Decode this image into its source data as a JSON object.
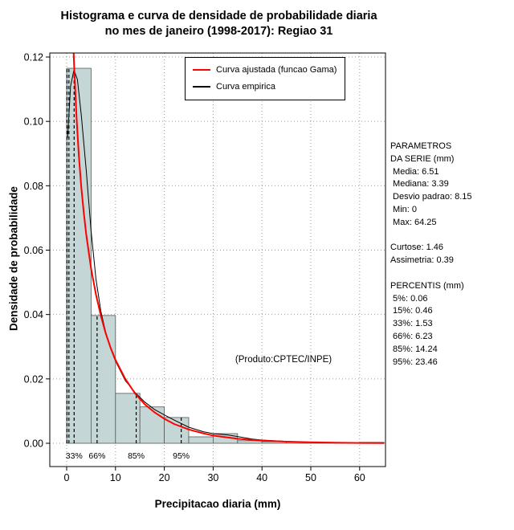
{
  "annotation": "(Produto:CPTEC/INPE)",
  "stats_panel": {
    "lines": [
      "PARAMETROS",
      "DA SERIE (mm)",
      " Media: 6.51",
      " Mediana: 3.39",
      " Desvio padrao: 8.15",
      " Min: 0",
      " Max: 64.25",
      "",
      "Curtose: 1.46",
      "Assimetria: 0.39",
      "",
      "PERCENTIS (mm)",
      " 5%: 0.06",
      " 15%: 0.46",
      " 33%: 1.53",
      " 66%: 6.23",
      " 85%: 14.24",
      " 95%: 23.46"
    ]
  },
  "chart_data": {
    "type": "histogram+density",
    "title": "Histograma e curva de densidade de probabilidade diaria no mes de janeiro (1998-2017): Regiao 31",
    "title_line1": "Histograma e curva de densidade de probabilidade diaria",
    "title_line2": "no mes de janeiro (1998-2017): Regiao 31",
    "xlabel": "Precipitacao diaria (mm)",
    "ylabel": "Densidade de probabilidade",
    "xlim": [
      0,
      65
    ],
    "ylim": [
      0,
      0.12
    ],
    "x_ticks": [
      0,
      10,
      20,
      30,
      40,
      50,
      60
    ],
    "y_ticks": [
      0,
      0.02,
      0.04,
      0.06,
      0.08,
      0.1,
      0.12
    ],
    "grid": true,
    "legend_position": "top-center-inside",
    "histogram": {
      "bin_start": 0,
      "bin_width": 5,
      "densities": [
        0.1165,
        0.0397,
        0.0155,
        0.0113,
        0.008,
        0.002,
        0.003,
        0.0008,
        0.0005,
        0.0004,
        0.0002,
        0.0001,
        0.0003
      ]
    },
    "gamma_curve": {
      "name": "Curva ajustada (funcao Gama)",
      "color": "#ff0000",
      "points": [
        [
          0.45,
          0.2031
        ],
        [
          0.6,
          0.1803
        ],
        [
          0.8,
          0.1594
        ],
        [
          1,
          0.1442
        ],
        [
          1.2,
          0.1323
        ],
        [
          1.5,
          0.1185
        ],
        [
          2,
          0.1017
        ],
        [
          2.5,
          0.0893
        ],
        [
          3,
          0.0796
        ],
        [
          3.5,
          0.0717
        ],
        [
          4,
          0.065
        ],
        [
          5,
          0.0543
        ],
        [
          6,
          0.0462
        ],
        [
          7,
          0.0396
        ],
        [
          8,
          0.0342
        ],
        [
          9,
          0.0297
        ],
        [
          10,
          0.0259
        ],
        [
          12,
          0.02
        ],
        [
          14,
          0.0155
        ],
        [
          16,
          0.0121
        ],
        [
          18,
          0.0096
        ],
        [
          20,
          0.0076
        ],
        [
          22,
          0.006
        ],
        [
          25,
          0.0043
        ],
        [
          28,
          0.0031
        ],
        [
          30,
          0.0024
        ],
        [
          35,
          0.0014
        ],
        [
          40,
          0.00083
        ],
        [
          45,
          0.00049
        ],
        [
          50,
          0.00029
        ],
        [
          55,
          0.00017
        ],
        [
          60,
          0.0001
        ],
        [
          65,
          6e-05
        ]
      ]
    },
    "empirical_curve": {
      "name": "Curva empirica",
      "color": "#000000",
      "points": [
        [
          0.2,
          0.095
        ],
        [
          0.8,
          0.111
        ],
        [
          1.5,
          0.116
        ],
        [
          2.2,
          0.113
        ],
        [
          3,
          0.102
        ],
        [
          4,
          0.085
        ],
        [
          5,
          0.066
        ],
        [
          6,
          0.051
        ],
        [
          7,
          0.041
        ],
        [
          8,
          0.0345
        ],
        [
          9,
          0.0295
        ],
        [
          10,
          0.0255
        ],
        [
          12,
          0.0195
        ],
        [
          14,
          0.0158
        ],
        [
          16,
          0.0128
        ],
        [
          18,
          0.0105
        ],
        [
          20,
          0.0088
        ],
        [
          22,
          0.0072
        ],
        [
          25,
          0.005
        ],
        [
          28,
          0.0036
        ],
        [
          30,
          0.003
        ],
        [
          33,
          0.0026
        ],
        [
          35,
          0.0021
        ],
        [
          38,
          0.0013
        ],
        [
          40,
          0.001
        ],
        [
          45,
          0.0006
        ],
        [
          50,
          0.0003
        ],
        [
          55,
          0.0002
        ],
        [
          60,
          0.0001
        ],
        [
          65,
          5e-05
        ]
      ]
    },
    "percentiles": [
      {
        "label": "5%",
        "x": 0.06,
        "height": 0.1165,
        "show_label": false
      },
      {
        "label": "15%",
        "x": 0.46,
        "height": 0.1165,
        "show_label": false
      },
      {
        "label": "33%",
        "x": 1.53,
        "height": 0.1165,
        "show_label": true
      },
      {
        "label": "66%",
        "x": 6.23,
        "height": 0.0397,
        "show_label": true
      },
      {
        "label": "85%",
        "x": 14.24,
        "height": 0.0155,
        "show_label": true
      },
      {
        "label": "95%",
        "x": 23.46,
        "height": 0.008,
        "show_label": true
      }
    ],
    "colors": {
      "bar_fill": "#c5d6d6",
      "bar_border": "#595959",
      "grid": "#9a9a9a",
      "axis": "#000000"
    }
  }
}
